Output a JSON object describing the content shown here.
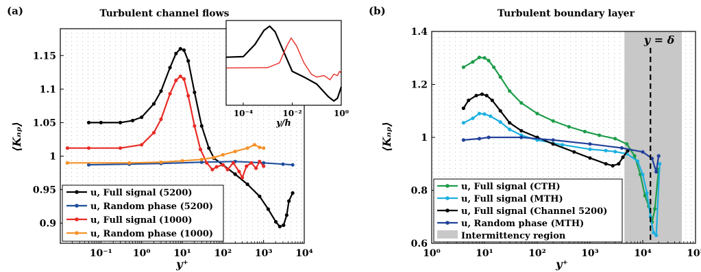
{
  "chart_data": [
    {
      "panel_label": "(a)",
      "type": "line",
      "title": "Turbulent channel flows",
      "xlabel": "y⁺",
      "ylabel": "⟨Kₙₚ⟩",
      "xscale": "log",
      "xlim": [
        0.01,
        10000
      ],
      "ylim": [
        0.87,
        1.19
      ],
      "xticks": [
        "10⁻¹",
        "10⁰",
        "10¹",
        "10²",
        "10³",
        "10⁴"
      ],
      "yticks": [
        "0.9",
        "0.95",
        "1",
        "1.05",
        "1.1",
        "1.15"
      ],
      "ytick_values": [
        0.9,
        0.95,
        1.0,
        1.05,
        1.1,
        1.15
      ],
      "legend_position": "bottom-left",
      "series": [
        {
          "name": "u, Full signal (5200)",
          "color": "#000000",
          "points": [
            [
              0.05,
              1.05
            ],
            [
              0.1,
              1.05
            ],
            [
              0.3,
              1.05
            ],
            [
              0.6,
              1.053
            ],
            [
              1,
              1.058
            ],
            [
              2,
              1.078
            ],
            [
              3,
              1.097
            ],
            [
              5,
              1.132
            ],
            [
              7,
              1.153
            ],
            [
              9,
              1.16
            ],
            [
              11,
              1.158
            ],
            [
              14,
              1.142
            ],
            [
              20,
              1.095
            ],
            [
              30,
              1.045
            ],
            [
              45,
              1.012
            ],
            [
              60,
              0.997
            ],
            [
              100,
              0.987
            ],
            [
              200,
              0.973
            ],
            [
              400,
              0.958
            ],
            [
              800,
              0.94
            ],
            [
              1300,
              0.921
            ],
            [
              2000,
              0.902
            ],
            [
              2500,
              0.895
            ],
            [
              3100,
              0.897
            ],
            [
              3700,
              0.912
            ],
            [
              4200,
              0.933
            ],
            [
              5200,
              0.945
            ]
          ]
        },
        {
          "name": "u, Random phase (5200)",
          "color": "#1f4e9c",
          "points": [
            [
              0.05,
              0.987
            ],
            [
              0.5,
              0.988
            ],
            [
              3,
              0.989
            ],
            [
              30,
              0.991
            ],
            [
              200,
              0.992
            ],
            [
              1000,
              0.99
            ],
            [
              3000,
              0.988
            ],
            [
              5200,
              0.987
            ]
          ]
        },
        {
          "name": "u, Full signal (1000)",
          "color": "#e82b25",
          "points": [
            [
              0.015,
              1.012
            ],
            [
              0.05,
              1.012
            ],
            [
              0.3,
              1.012
            ],
            [
              1,
              1.017
            ],
            [
              2,
              1.035
            ],
            [
              3,
              1.055
            ],
            [
              5,
              1.093
            ],
            [
              7,
              1.113
            ],
            [
              9,
              1.119
            ],
            [
              11,
              1.115
            ],
            [
              14,
              1.09
            ],
            [
              20,
              1.045
            ],
            [
              28,
              1.01
            ],
            [
              40,
              0.99
            ],
            [
              55,
              0.98
            ],
            [
              70,
              0.984
            ],
            [
              100,
              0.987
            ],
            [
              130,
              0.98
            ],
            [
              180,
              0.99
            ],
            [
              250,
              0.977
            ],
            [
              300,
              0.968
            ],
            [
              380,
              0.985
            ],
            [
              500,
              0.99
            ],
            [
              650,
              0.982
            ],
            [
              800,
              0.992
            ],
            [
              1000,
              0.985
            ]
          ]
        },
        {
          "name": "u, Random phase (1000)",
          "color": "#f4922a",
          "points": [
            [
              0.015,
              0.99
            ],
            [
              0.5,
              0.99
            ],
            [
              3,
              0.991
            ],
            [
              10,
              0.993
            ],
            [
              30,
              0.995
            ],
            [
              60,
              0.998
            ],
            [
              100,
              1.002
            ],
            [
              200,
              1.007
            ],
            [
              400,
              1.012
            ],
            [
              600,
              1.017
            ],
            [
              800,
              1.013
            ],
            [
              1000,
              1.012
            ]
          ]
        }
      ],
      "inset": {
        "xlabel": "y/h",
        "xscale": "log",
        "xlim": [
          2e-05,
          1
        ],
        "xticks": [
          "10⁻⁴",
          "10⁻²",
          "10⁰"
        ],
        "ylim": [
          0.88,
          1.18
        ],
        "series": [
          {
            "color": "#000000",
            "points": [
              [
                2e-05,
                1.05
              ],
              [
                0.0001,
                1.052
              ],
              [
                0.0003,
                1.095
              ],
              [
                0.0007,
                1.145
              ],
              [
                0.0012,
                1.16
              ],
              [
                0.002,
                1.14
              ],
              [
                0.005,
                1.06
              ],
              [
                0.01,
                1.0
              ],
              [
                0.03,
                0.98
              ],
              [
                0.1,
                0.955
              ],
              [
                0.3,
                0.91
              ],
              [
                0.5,
                0.895
              ],
              [
                0.7,
                0.905
              ],
              [
                1,
                0.945
              ]
            ]
          },
          {
            "color": "#e82b25",
            "points": [
              [
                2e-05,
                1.012
              ],
              [
                0.001,
                1.013
              ],
              [
                0.003,
                1.03
              ],
              [
                0.006,
                1.09
              ],
              [
                0.009,
                1.118
              ],
              [
                0.015,
                1.09
              ],
              [
                0.03,
                1.03
              ],
              [
                0.06,
                0.99
              ],
              [
                0.1,
                0.98
              ],
              [
                0.2,
                0.985
              ],
              [
                0.35,
                0.97
              ],
              [
                0.5,
                0.99
              ],
              [
                0.7,
                0.985
              ],
              [
                0.85,
                1.0
              ],
              [
                1,
                0.995
              ]
            ]
          }
        ]
      }
    },
    {
      "panel_label": "(b)",
      "type": "line",
      "title": "Turbulent boundary layer",
      "xlabel": "y⁺",
      "ylabel": "⟨Kₙₚ⟩",
      "xscale": "log",
      "xlim": [
        1,
        100000
      ],
      "ylim": [
        0.6,
        1.4
      ],
      "xticks": [
        "10⁰",
        "10¹",
        "10²",
        "10³",
        "10⁴",
        "10⁵"
      ],
      "yticks": [
        "0.6",
        "0.8",
        "1",
        "1.2",
        "1.4"
      ],
      "ytick_values": [
        0.6,
        0.8,
        1.0,
        1.2,
        1.4
      ],
      "annotation": "y = δ",
      "delta_x": 14000,
      "intermittency_region": [
        4500,
        55000
      ],
      "legend_position": "bottom-left",
      "legend": [
        "u, Full signal (CTH)",
        "u, Full signal (MTH)",
        "u, Full signal (Channel 5200)",
        "u, Random phase (MTH)",
        "Intermittency region"
      ],
      "series": [
        {
          "name": "u, Full signal (CTH)",
          "color": "#1e9c4a",
          "points": [
            [
              4,
              1.265
            ],
            [
              6,
              1.285
            ],
            [
              8,
              1.302
            ],
            [
              10,
              1.3
            ],
            [
              12,
              1.29
            ],
            [
              15,
              1.265
            ],
            [
              20,
              1.228
            ],
            [
              30,
              1.175
            ],
            [
              50,
              1.13
            ],
            [
              100,
              1.09
            ],
            [
              200,
              1.062
            ],
            [
              400,
              1.04
            ],
            [
              800,
              1.022
            ],
            [
              1500,
              1.008
            ],
            [
              3000,
              0.995
            ],
            [
              5000,
              0.975
            ],
            [
              7000,
              0.93
            ],
            [
              9000,
              0.86
            ],
            [
              11000,
              0.78
            ],
            [
              13000,
              0.74
            ],
            [
              15000,
              0.68
            ],
            [
              17000,
              0.73
            ],
            [
              20000,
              0.88
            ]
          ]
        },
        {
          "name": "u, Full signal (MTH)",
          "color": "#1bb0e0",
          "points": [
            [
              4,
              1.055
            ],
            [
              6,
              1.072
            ],
            [
              8,
              1.09
            ],
            [
              10,
              1.088
            ],
            [
              13,
              1.08
            ],
            [
              20,
              1.058
            ],
            [
              30,
              1.03
            ],
            [
              50,
              1.008
            ],
            [
              100,
              0.99
            ],
            [
              300,
              0.972
            ],
            [
              1000,
              0.955
            ],
            [
              2000,
              0.95
            ],
            [
              3000,
              0.946
            ],
            [
              5000,
              0.938
            ],
            [
              8000,
              0.91
            ],
            [
              10000,
              0.86
            ],
            [
              12000,
              0.79
            ],
            [
              14000,
              0.7
            ],
            [
              16000,
              0.64
            ],
            [
              18000,
              0.63
            ],
            [
              21000,
              0.9
            ]
          ]
        },
        {
          "name": "u, Full signal (Channel 5200)",
          "color": "#000000",
          "points": [
            [
              4,
              1.11
            ],
            [
              5,
              1.14
            ],
            [
              7,
              1.158
            ],
            [
              9,
              1.163
            ],
            [
              11,
              1.158
            ],
            [
              14,
              1.14
            ],
            [
              20,
              1.1
            ],
            [
              30,
              1.055
            ],
            [
              50,
              1.025
            ],
            [
              100,
              1.0
            ],
            [
              200,
              0.975
            ],
            [
              500,
              0.945
            ],
            [
              1000,
              0.922
            ],
            [
              2000,
              0.9
            ],
            [
              2700,
              0.893
            ],
            [
              3500,
              0.9
            ],
            [
              4200,
              0.925
            ],
            [
              5200,
              0.95
            ]
          ]
        },
        {
          "name": "u, Random phase (MTH)",
          "color": "#21409a",
          "points": [
            [
              4,
              0.99
            ],
            [
              8,
              0.995
            ],
            [
              12,
              1.0
            ],
            [
              50,
              1.0
            ],
            [
              200,
              0.99
            ],
            [
              1000,
              0.975
            ],
            [
              4000,
              0.96
            ],
            [
              10000,
              0.945
            ],
            [
              15000,
              0.92
            ],
            [
              18000,
              0.87
            ],
            [
              20000,
              0.93
            ]
          ]
        }
      ]
    }
  ]
}
